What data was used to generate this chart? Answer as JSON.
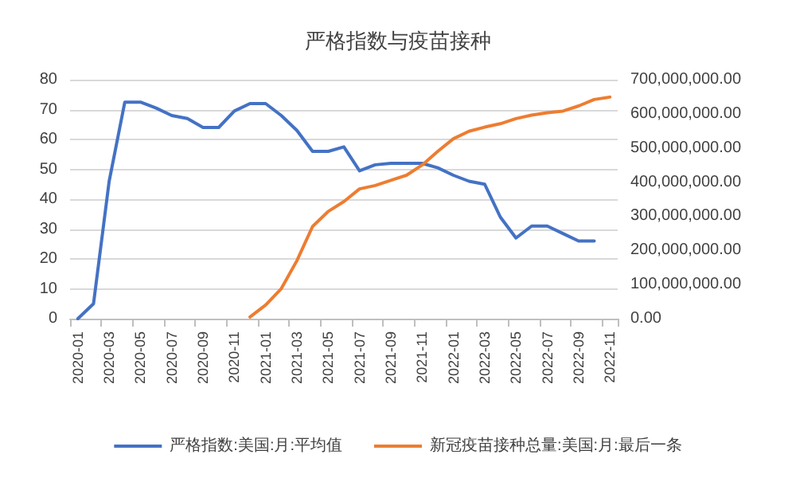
{
  "chart_data": {
    "type": "line",
    "title": "严格指数与疫苗接种",
    "categories": [
      "2020-01",
      null,
      "2020-03",
      null,
      "2020-05",
      null,
      "2020-07",
      null,
      "2020-09",
      null,
      "2020-11",
      null,
      "2021-01",
      null,
      "2021-03",
      null,
      "2021-05",
      null,
      "2021-07",
      null,
      "2021-09",
      null,
      "2021-11",
      null,
      "2022-01",
      null,
      "2022-03",
      null,
      "2022-05",
      null,
      "2022-07",
      null,
      "2022-09",
      null,
      "2022-11"
    ],
    "series": [
      {
        "name": "严格指数:美国:月:平均值",
        "color": "#4472c4",
        "values": [
          0,
          5,
          46,
          72.5,
          72.5,
          70.5,
          68,
          67,
          64,
          64,
          69.5,
          72,
          72,
          68,
          63,
          56,
          56,
          57.5,
          49.5,
          51.5,
          52,
          52,
          52,
          50.5,
          48,
          46,
          45,
          34,
          27,
          31,
          31,
          28.5,
          26,
          26,
          null
        ]
      },
      {
        "name": "新冠疫苗接种总量:美国:月:最后一条",
        "color": "#ed7d31",
        "axis": "y2",
        "values": [
          null,
          null,
          null,
          null,
          null,
          null,
          null,
          null,
          null,
          null,
          null,
          5000000,
          40000000,
          88000000,
          170000000,
          270000000,
          314000000,
          343000000,
          380000000,
          390000000,
          405000000,
          420000000,
          450000000,
          490000000,
          527000000,
          549000000,
          561000000,
          571000000,
          586000000,
          596000000,
          603000000,
          608000000,
          623000000,
          642000000,
          649000000
        ]
      }
    ],
    "ylim": [
      0,
      80
    ],
    "yticks": [
      0,
      10,
      20,
      30,
      40,
      50,
      60,
      70,
      80
    ],
    "y2lim": [
      0,
      700000000
    ],
    "y2ticks": [
      {
        "value": 0,
        "label": "0.00"
      },
      {
        "value": 100000000,
        "label": "100,000,000.00"
      },
      {
        "value": 200000000,
        "label": "200,000,000.00"
      },
      {
        "value": 300000000,
        "label": "300,000,000.00"
      },
      {
        "value": 400000000,
        "label": "400,000,000.00"
      },
      {
        "value": 500000000,
        "label": "500,000,000.00"
      },
      {
        "value": 600000000,
        "label": "600,000,000.00"
      },
      {
        "value": 700000000,
        "label": "700,000,000.00"
      }
    ],
    "grid": "y",
    "legend": "bottom",
    "marker": "none",
    "line_style": "solid"
  }
}
